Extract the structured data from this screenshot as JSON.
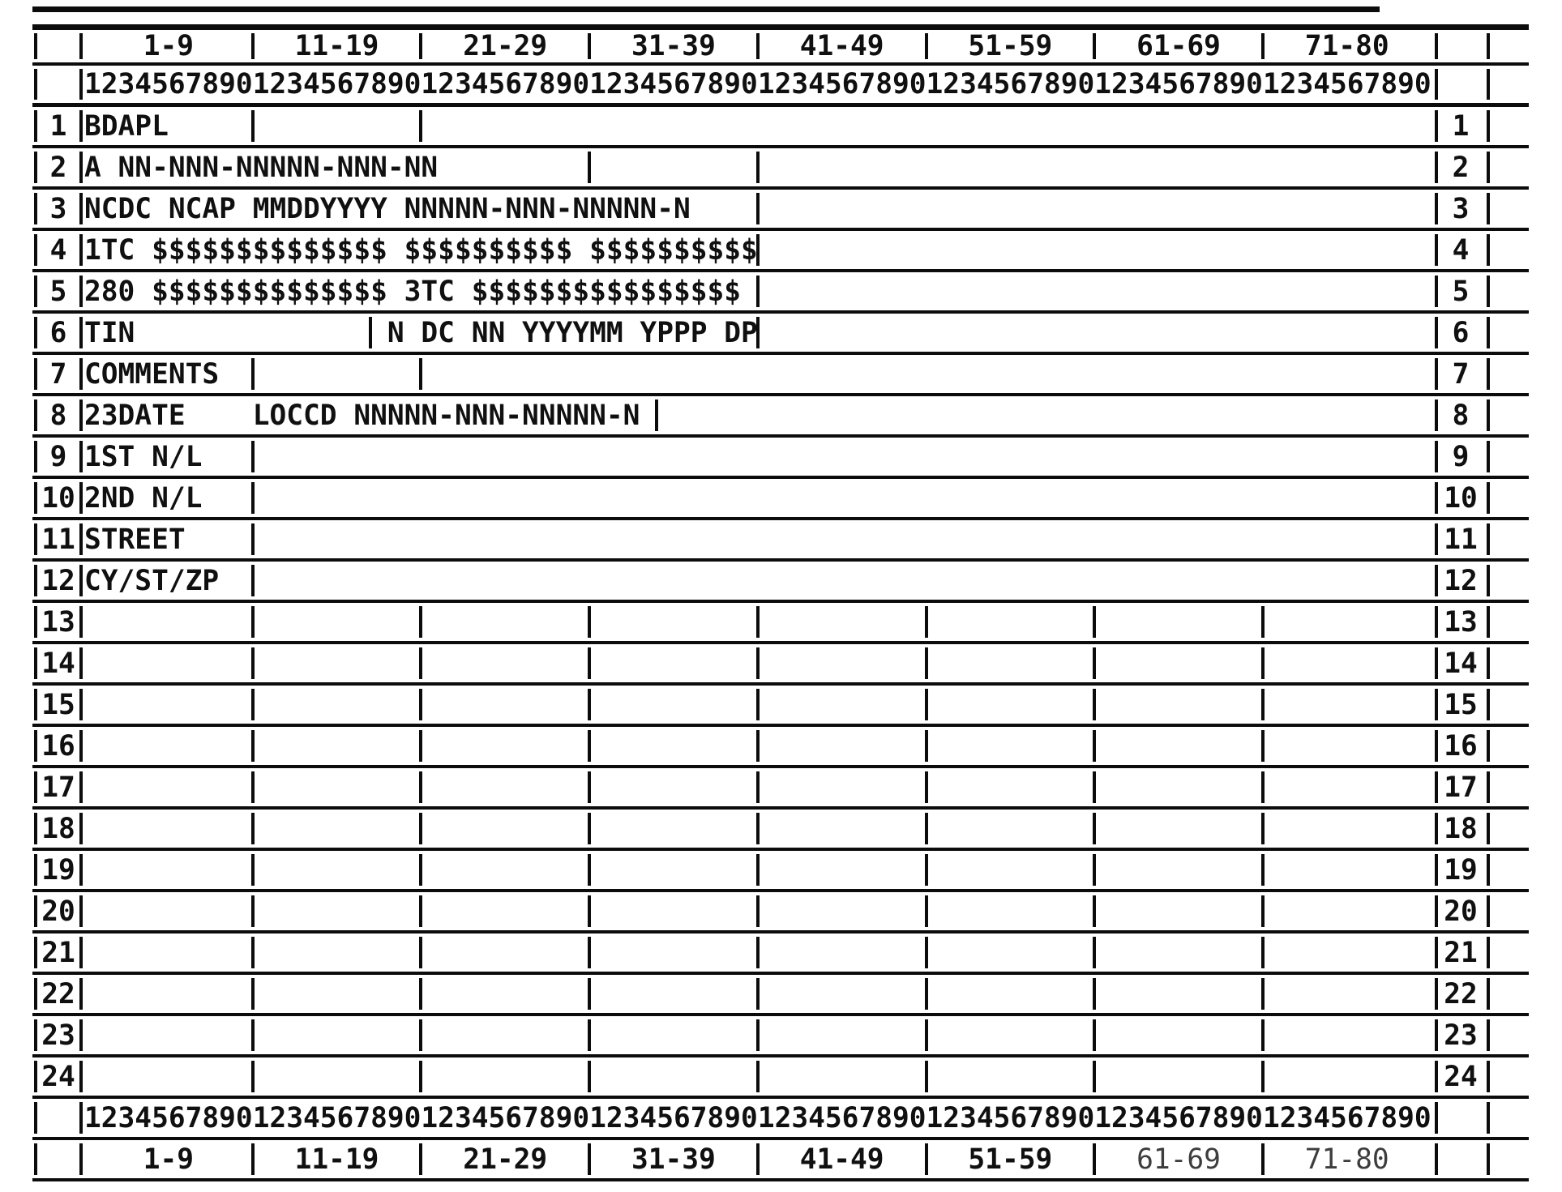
{
  "colors": {
    "ink": "#0c0c0c",
    "paper": "#ffffff"
  },
  "top_header": {
    "column_ranges": [
      "1-9",
      "11-19",
      "21-29",
      "31-39",
      "41-49",
      "51-59",
      "61-69",
      "71-80"
    ]
  },
  "top_ruler": {
    "digits": "12345678901234567890123456789012345678901234567890123456789012345678901234567890"
  },
  "rows": [
    {
      "num": "1",
      "text": "BDAPL",
      "ticks": [
        10,
        20
      ]
    },
    {
      "num": "2",
      "text": "A NN-NNN-NNNNN-NNN-NN",
      "ticks": [
        30,
        40
      ]
    },
    {
      "num": "3",
      "text": "NCDC NCAP MMDDYYYY NNNNN-NNN-NNNNN-N",
      "ticks": [
        40
      ]
    },
    {
      "num": "4",
      "text": "1TC $$$$$$$$$$$$$$ $$$$$$$$$$ $$$$$$$$$$",
      "ticks": [
        40
      ]
    },
    {
      "num": "5",
      "text": "280 $$$$$$$$$$$$$$ 3TC $$$$$$$$$$$$$$$$",
      "ticks": [
        40
      ]
    },
    {
      "num": "6",
      "text": "TIN               N DC NN YYYYMM YPPP DP",
      "ticks": [
        17,
        40
      ]
    },
    {
      "num": "7",
      "text": "COMMENTS",
      "ticks": [
        10,
        20
      ]
    },
    {
      "num": "8",
      "text": "23DATE    LOCCD NNNNN-NNN-NNNNN-N",
      "ticks": [
        34
      ]
    },
    {
      "num": "9",
      "text": "1ST N/L",
      "ticks": [
        10
      ]
    },
    {
      "num": "10",
      "text": "2ND N/L",
      "ticks": [
        10
      ]
    },
    {
      "num": "11",
      "text": "STREET",
      "ticks": [
        10
      ]
    },
    {
      "num": "12",
      "text": "CY/ST/ZP",
      "ticks": [
        10
      ]
    },
    {
      "num": "13",
      "text": "",
      "ticks": [
        10,
        20,
        30,
        40,
        50,
        60,
        70
      ]
    },
    {
      "num": "14",
      "text": "",
      "ticks": [
        10,
        20,
        30,
        40,
        50,
        60,
        70
      ]
    },
    {
      "num": "15",
      "text": "",
      "ticks": [
        10,
        20,
        30,
        40,
        50,
        60,
        70
      ]
    },
    {
      "num": "16",
      "text": "",
      "ticks": [
        10,
        20,
        30,
        40,
        50,
        60,
        70
      ]
    },
    {
      "num": "17",
      "text": "",
      "ticks": [
        10,
        20,
        30,
        40,
        50,
        60,
        70
      ]
    },
    {
      "num": "18",
      "text": "",
      "ticks": [
        10,
        20,
        30,
        40,
        50,
        60,
        70
      ]
    },
    {
      "num": "19",
      "text": "",
      "ticks": [
        10,
        20,
        30,
        40,
        50,
        60,
        70
      ]
    },
    {
      "num": "20",
      "text": "",
      "ticks": [
        10,
        20,
        30,
        40,
        50,
        60,
        70
      ]
    },
    {
      "num": "21",
      "text": "",
      "ticks": [
        10,
        20,
        30,
        40,
        50,
        60,
        70
      ]
    },
    {
      "num": "22",
      "text": "",
      "ticks": [
        10,
        20,
        30,
        40,
        50,
        60,
        70
      ]
    },
    {
      "num": "23",
      "text": "",
      "ticks": [
        10,
        20,
        30,
        40,
        50,
        60,
        70
      ]
    },
    {
      "num": "24",
      "text": "",
      "ticks": [
        10,
        20,
        30,
        40,
        50,
        60,
        70
      ]
    }
  ],
  "bottom_ruler": {
    "digits": "12345678901234567890123456789012345678901234567890123456789012345678901234567890"
  },
  "bottom_header": {
    "column_ranges": [
      "1-9",
      "11-19",
      "21-29",
      "31-39",
      "41-49",
      "51-59",
      "61-69",
      "71-80"
    ]
  }
}
